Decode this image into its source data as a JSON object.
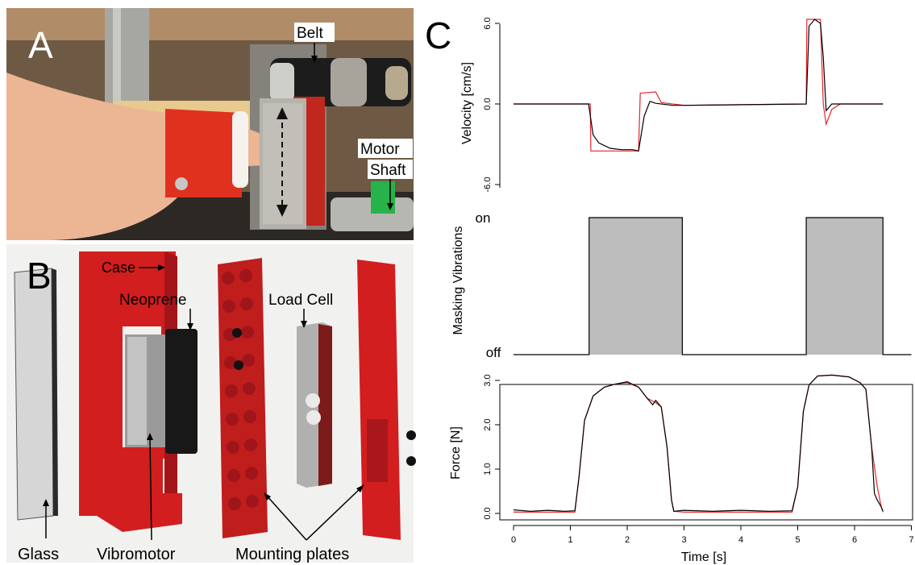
{
  "panels": {
    "a": {
      "letter": "A",
      "labels": {
        "belt": "Belt",
        "motor": "Motor",
        "shaft": "Shaft"
      }
    },
    "b": {
      "letter": "B",
      "labels": {
        "case": "Case",
        "neoprene": "Neoprene",
        "load_cell": "Load Cell",
        "glass": "Glass",
        "vibromotor": "Vibromotor",
        "mounting_plates": "Mounting plates"
      }
    },
    "c": {
      "letter": "C"
    }
  },
  "colors": {
    "measured": "#000000",
    "reference": "#e8262b",
    "masking_fill": "#bdbdbd",
    "part_red": "#d21e1e"
  },
  "chart_data": [
    {
      "type": "line",
      "ylabel": "Velocity [cm/s]",
      "ylim": [
        -6.0,
        6.0
      ],
      "yticks": [
        "6.0",
        "0.0",
        "-6.0"
      ],
      "xlim": [
        0,
        6.5
      ],
      "series": [
        {
          "color": "#e8262b",
          "x": [
            0,
            1.35,
            1.36,
            2.2,
            2.23,
            2.5,
            2.6,
            3.0,
            5.15,
            5.16,
            5.4,
            5.45,
            5.5,
            5.6,
            5.75,
            6.5
          ],
          "y": [
            0,
            0,
            -3.5,
            -3.5,
            0.8,
            0.9,
            0.1,
            -0.1,
            0,
            6.3,
            6.3,
            0,
            -1.5,
            -0.4,
            0,
            0
          ]
        },
        {
          "color": "#000000",
          "x": [
            0,
            1.32,
            1.4,
            1.5,
            1.7,
            1.9,
            2.1,
            2.2,
            2.3,
            2.4,
            2.5,
            2.8,
            3.0,
            5.15,
            5.2,
            5.3,
            5.4,
            5.45,
            5.5,
            5.6,
            5.8,
            6.5
          ],
          "y": [
            0,
            0,
            -2.3,
            -2.9,
            -3.3,
            -3.4,
            -3.4,
            -3.5,
            -0.9,
            0.2,
            0.05,
            -0.1,
            -0.1,
            0,
            5.8,
            6.3,
            6.0,
            3.5,
            -0.5,
            0.0,
            0.0,
            0
          ]
        }
      ]
    },
    {
      "type": "area",
      "ylabel": "Masking Vibrations",
      "yticks": [
        "on",
        "off"
      ],
      "xlim": [
        0,
        7
      ],
      "intervals": [
        [
          1.33,
          2.97
        ],
        [
          5.15,
          6.5
        ]
      ]
    },
    {
      "type": "line",
      "title": "",
      "xlabel": "Time [s]",
      "ylabel": "Force [N]",
      "xlim": [
        0,
        7
      ],
      "ylim": [
        0,
        3.0
      ],
      "xticks": [
        "0",
        "1",
        "2",
        "3",
        "4",
        "5",
        "6",
        "7"
      ],
      "yticks": [
        "0.0",
        "1.0",
        "2.0",
        "3.0"
      ],
      "series": [
        {
          "color": "#e8262b",
          "x": [
            0,
            1.08,
            1.15,
            1.25,
            1.4,
            1.6,
            1.8,
            2.0,
            2.2,
            2.35,
            2.5,
            2.6,
            2.7,
            2.78,
            2.82,
            3.0,
            4.9,
            5.0,
            5.1,
            5.2,
            5.35,
            5.6,
            5.9,
            6.1,
            6.2,
            6.3,
            6.4,
            6.47,
            6.5
          ],
          "y": [
            0.03,
            0.03,
            0.8,
            2.1,
            2.65,
            2.85,
            2.92,
            2.95,
            2.85,
            2.6,
            2.5,
            2.4,
            1.5,
            0.3,
            0.05,
            0.03,
            0.03,
            0.6,
            2.3,
            2.9,
            3.1,
            3.12,
            3.08,
            2.95,
            2.8,
            1.5,
            0.6,
            0.15,
            0.03
          ]
        },
        {
          "color": "#000000",
          "x": [
            0,
            0.3,
            0.6,
            0.9,
            1.08,
            1.15,
            1.25,
            1.4,
            1.6,
            1.8,
            2.0,
            2.2,
            2.35,
            2.45,
            2.5,
            2.6,
            2.7,
            2.78,
            2.82,
            3.0,
            3.5,
            4.0,
            4.5,
            4.9,
            5.0,
            5.1,
            5.2,
            5.35,
            5.6,
            5.9,
            6.1,
            6.2,
            6.3,
            6.35,
            6.4,
            6.47,
            6.5
          ],
          "y": [
            0.08,
            0.05,
            0.07,
            0.05,
            0.06,
            0.8,
            2.1,
            2.65,
            2.85,
            2.92,
            2.97,
            2.85,
            2.6,
            2.45,
            2.55,
            2.4,
            1.5,
            0.3,
            0.05,
            0.07,
            0.05,
            0.07,
            0.05,
            0.06,
            0.6,
            2.3,
            2.9,
            3.1,
            3.12,
            3.08,
            2.95,
            2.8,
            1.5,
            0.45,
            0.3,
            0.15,
            0.05
          ]
        }
      ]
    }
  ]
}
